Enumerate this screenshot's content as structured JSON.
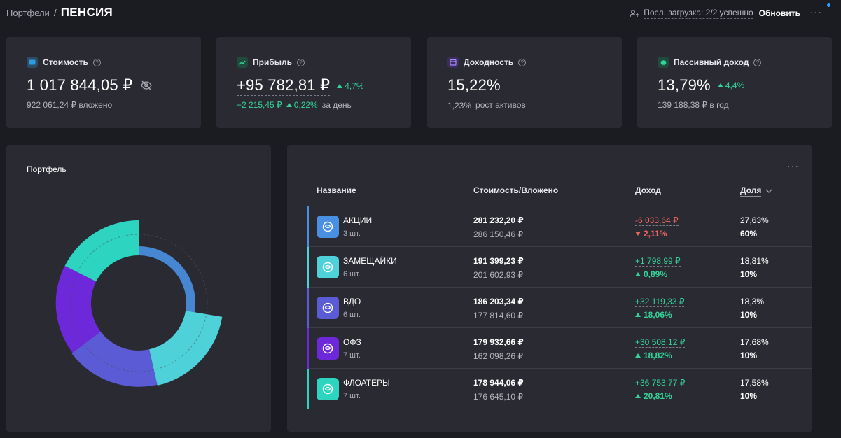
{
  "header": {
    "breadcrumb_link": "Портфели",
    "breadcrumb_sep": "/",
    "title": "ПЕНСИЯ",
    "load_status": "Посл. загрузка: 2/2 успешно",
    "refresh_label": "Обновить",
    "more_label": "···"
  },
  "stats": {
    "value": {
      "label": "Стоимость",
      "amount": "1 017 844,05 ₽",
      "sub": "922 061,24 ₽ вложено",
      "icon_color": "#2d9cdb"
    },
    "profit": {
      "label": "Прибыль",
      "amount": "+95 782,81 ₽",
      "delta": "4,7%",
      "sub_amount": "+2 215,45 ₽",
      "sub_delta": "0,22%",
      "sub_suffix": "за день",
      "icon_color": "#34d399"
    },
    "yield": {
      "label": "Доходность",
      "amount": "15,22%",
      "sub_value": "1,23%",
      "sub_label": "рост активов",
      "icon_color": "#8b5cf6"
    },
    "passive": {
      "label": "Пассивный доход",
      "amount": "13,79%",
      "delta": "4,4%",
      "sub": "139 188,38 ₽ в год",
      "icon_color": "#34d399"
    }
  },
  "chart_title": "Портфель",
  "chart_data": {
    "type": "pie",
    "categories": [
      "АКЦИИ",
      "ЗАМЕЩАЙКИ",
      "ВДО",
      "ОФЗ",
      "ФЛОАТЕРЫ"
    ],
    "values": [
      27.63,
      18.81,
      18.3,
      17.68,
      17.58
    ],
    "targets": [
      60,
      10,
      10,
      10,
      10
    ],
    "colors": [
      "#4a90e2",
      "#4fd1d9",
      "#5b5bd6",
      "#6d28d9",
      "#2dd4bf"
    ]
  },
  "table": {
    "more_label": "···",
    "columns": {
      "name": "Название",
      "cost": "Стоимость/Вложено",
      "income": "Доход",
      "share": "Доля"
    },
    "rows": [
      {
        "name": "АКЦИИ",
        "count": "3 шт.",
        "cost": "281 232,20 ₽",
        "invested": "286 150,46 ₽",
        "income": "-6 033,64 ₽",
        "income_pct": "2,11%",
        "negative": true,
        "share": "27,63%",
        "target": "60%",
        "color": "#4a90e2"
      },
      {
        "name": "ЗАМЕЩАЙКИ",
        "count": "6 шт.",
        "cost": "191 399,23 ₽",
        "invested": "201 602,93 ₽",
        "income": "+1 798,99 ₽",
        "income_pct": "0,89%",
        "negative": false,
        "share": "18,81%",
        "target": "10%",
        "color": "#4fd1d9"
      },
      {
        "name": "ВДО",
        "count": "6 шт.",
        "cost": "186 203,34 ₽",
        "invested": "177 814,60 ₽",
        "income": "+32 119,33 ₽",
        "income_pct": "18,06%",
        "negative": false,
        "share": "18,3%",
        "target": "10%",
        "color": "#5b5bd6"
      },
      {
        "name": "ОФЗ",
        "count": "7 шт.",
        "cost": "179 932,66 ₽",
        "invested": "162 098,26 ₽",
        "income": "+30 508,12 ₽",
        "income_pct": "18,82%",
        "negative": false,
        "share": "17,68%",
        "target": "10%",
        "color": "#6d28d9"
      },
      {
        "name": "ФЛОАТЕРЫ",
        "count": "7 шт.",
        "cost": "178 944,06 ₽",
        "invested": "176 645,10 ₽",
        "income": "+36 753,77 ₽",
        "income_pct": "20,81%",
        "negative": false,
        "share": "17,58%",
        "target": "10%",
        "color": "#2dd4bf"
      }
    ]
  }
}
